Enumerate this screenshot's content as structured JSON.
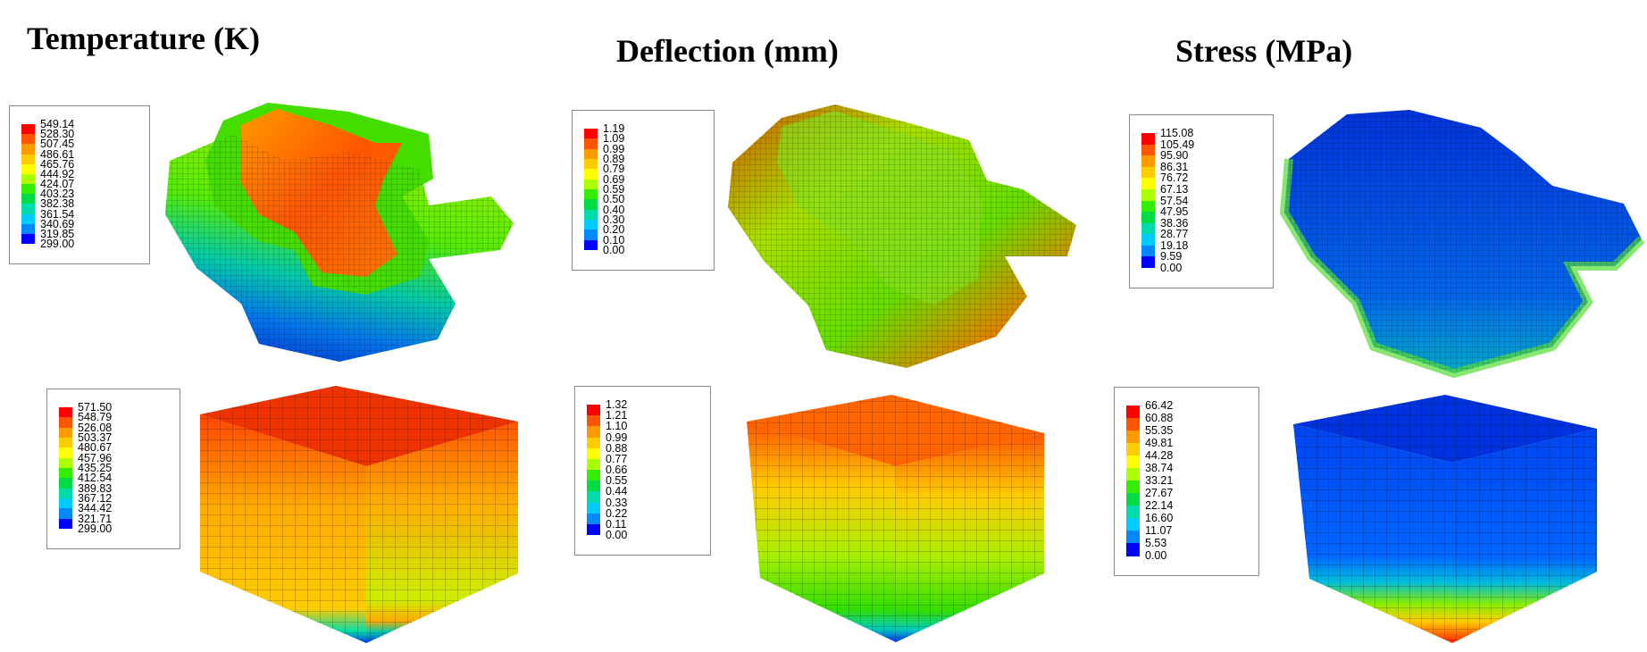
{
  "titles": {
    "temperature": "Temperature (K)",
    "deflection": "Deflection (mm)",
    "stress": "Stress (MPa)"
  },
  "colormap": [
    "#ff0000",
    "#ff5500",
    "#ff9900",
    "#ffcc00",
    "#ffff00",
    "#aaff00",
    "#33ee00",
    "#00dd44",
    "#00ddaa",
    "#00ccff",
    "#0088ff",
    "#0000ff"
  ],
  "legends": {
    "temp_part": [
      "549.14",
      "528.30",
      "507.45",
      "486.61",
      "465.76",
      "444.92",
      "424.07",
      "403.23",
      "382.38",
      "361.54",
      "340.69",
      "319.85",
      "299.00"
    ],
    "defl_part": [
      "1.19",
      "1.09",
      "0.99",
      "0.89",
      "0.79",
      "0.69",
      "0.59",
      "0.50",
      "0.40",
      "0.30",
      "0.20",
      "0.10",
      "0.00"
    ],
    "stress_part": [
      "115.08",
      "105.49",
      "95.90",
      "86.31",
      "76.72",
      "67.13",
      "57.54",
      "47.95",
      "38.36",
      "28.77",
      "19.18",
      "9.59",
      "0.00"
    ],
    "temp_cube": [
      "571.50",
      "548.79",
      "526.08",
      "503.37",
      "480.67",
      "457.96",
      "435.25",
      "412.54",
      "389.83",
      "367.12",
      "344.42",
      "321.71",
      "299.00"
    ],
    "defl_cube": [
      "1.32",
      "1.21",
      "1.10",
      "0.99",
      "0.88",
      "0.77",
      "0.66",
      "0.55",
      "0.44",
      "0.33",
      "0.22",
      "0.11",
      "0.00"
    ],
    "stress_cube": [
      "66.42",
      "60.88",
      "55.35",
      "49.81",
      "44.28",
      "38.74",
      "33.21",
      "27.67",
      "22.14",
      "16.60",
      "11.07",
      "5.53",
      "0.00"
    ]
  }
}
